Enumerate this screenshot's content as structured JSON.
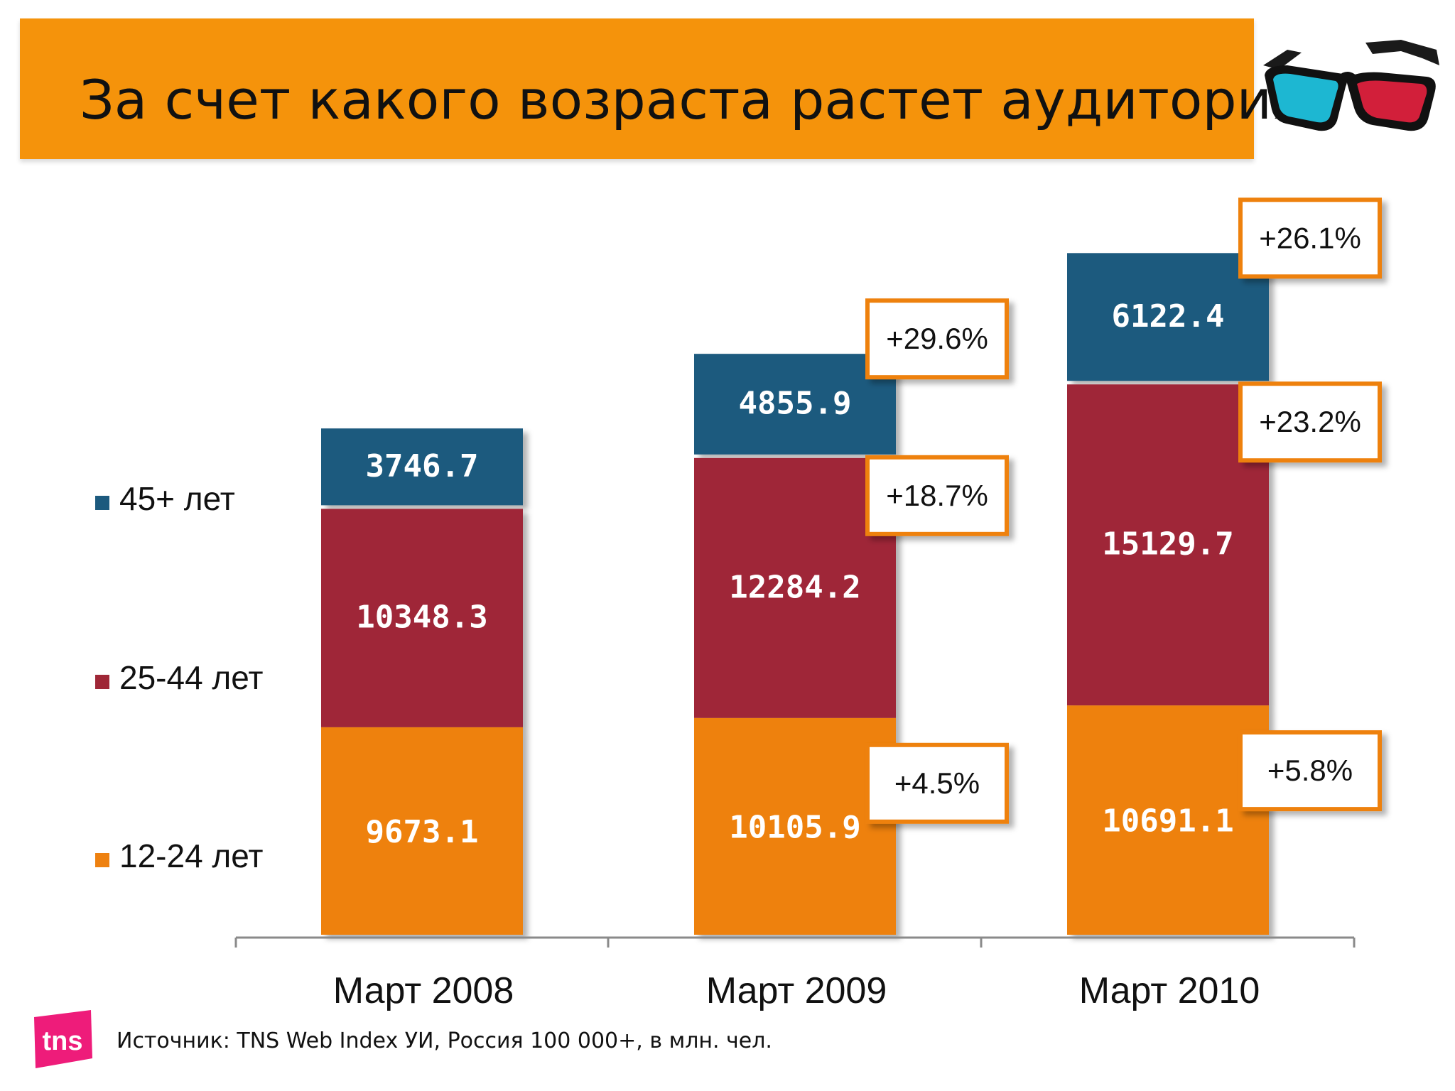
{
  "title": "За счет какого возраста растет аудитория",
  "source": "Источник: TNS Web Index УИ, Россия 100 000+, в млн. чел.",
  "logo_text": "tns",
  "colors": {
    "banner": "#f5930b",
    "series_12_24": "#ee8110",
    "series_25_44": "#9f2737",
    "series_45": "#1c5a7e",
    "callout_border": "#ee8110"
  },
  "icons": {
    "glasses": "3d-glasses-icon"
  },
  "chart_data": {
    "type": "bar",
    "stacked": true,
    "categories": [
      "Март 2008",
      "Март 2009",
      "Март 2010"
    ],
    "series": [
      {
        "name": "12-24 лет",
        "values": [
          9673.1,
          10105.9,
          10691.1
        ],
        "labels": [
          "9673.1",
          "10105.9",
          "10691.1"
        ],
        "growth": [
          null,
          "+4.5%",
          "+5.8%"
        ]
      },
      {
        "name": "25-44 лет",
        "values": [
          10348.3,
          12284.2,
          15129.7
        ],
        "labels": [
          "10348.3",
          "12284.2",
          "15129.7"
        ],
        "growth": [
          null,
          "+18.7%",
          "+23.2%"
        ]
      },
      {
        "name": "45+ лет",
        "values": [
          3746.7,
          4855.9,
          6122.4
        ],
        "labels": [
          "3746.7",
          "4855.9",
          "6122.4"
        ],
        "growth": [
          null,
          "+29.6%",
          "+26.1%"
        ]
      }
    ],
    "title": "",
    "xlabel": "",
    "ylabel": "",
    "legend": "left",
    "grid": false
  }
}
